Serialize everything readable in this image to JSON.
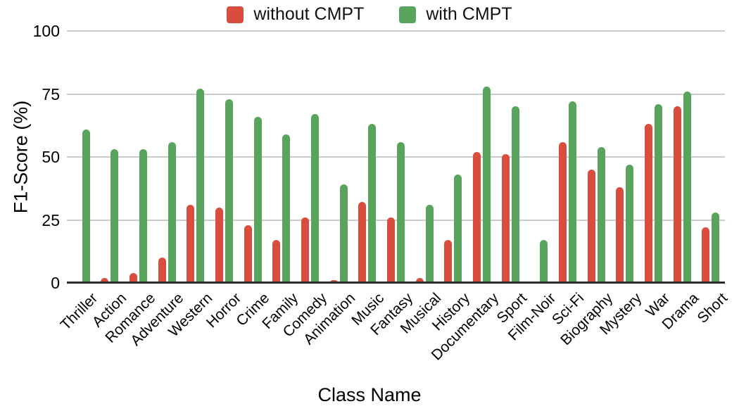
{
  "chart_data": {
    "type": "bar",
    "title": "",
    "xlabel": "Class Name",
    "ylabel": "F1-Score (%)",
    "ylim": [
      0,
      100
    ],
    "y_ticks": [
      0,
      25,
      50,
      75,
      100
    ],
    "grid": true,
    "legend_position": "top-center",
    "categories": [
      "Thriller",
      "Action",
      "Romance",
      "Adventure",
      "Western",
      "Horror",
      "Crime",
      "Family",
      "Comedy",
      "Animation",
      "Music",
      "Fantasy",
      "Musical",
      "History",
      "Documentary",
      "Sport",
      "Film-Noir",
      "Sci-Fi",
      "Biography",
      "Mystery",
      "War",
      "Drama",
      "Short"
    ],
    "series": [
      {
        "name": "without CMPT",
        "color": "#d94d3e",
        "values": [
          0,
          2,
          4,
          10,
          31,
          30,
          23,
          17,
          26,
          1,
          32,
          26,
          2,
          17,
          52,
          51,
          0,
          56,
          45,
          38,
          63,
          70,
          22
        ]
      },
      {
        "name": "with CMPT",
        "color": "#58a45d",
        "values": [
          61,
          53,
          53,
          56,
          77,
          73,
          66,
          59,
          67,
          39,
          63,
          56,
          31,
          43,
          78,
          70,
          17,
          72,
          54,
          47,
          71,
          76,
          28
        ]
      }
    ],
    "colors": {
      "gridline": "#cccccc",
      "axis_line": "#2b2b2b",
      "text": "#000000"
    }
  }
}
